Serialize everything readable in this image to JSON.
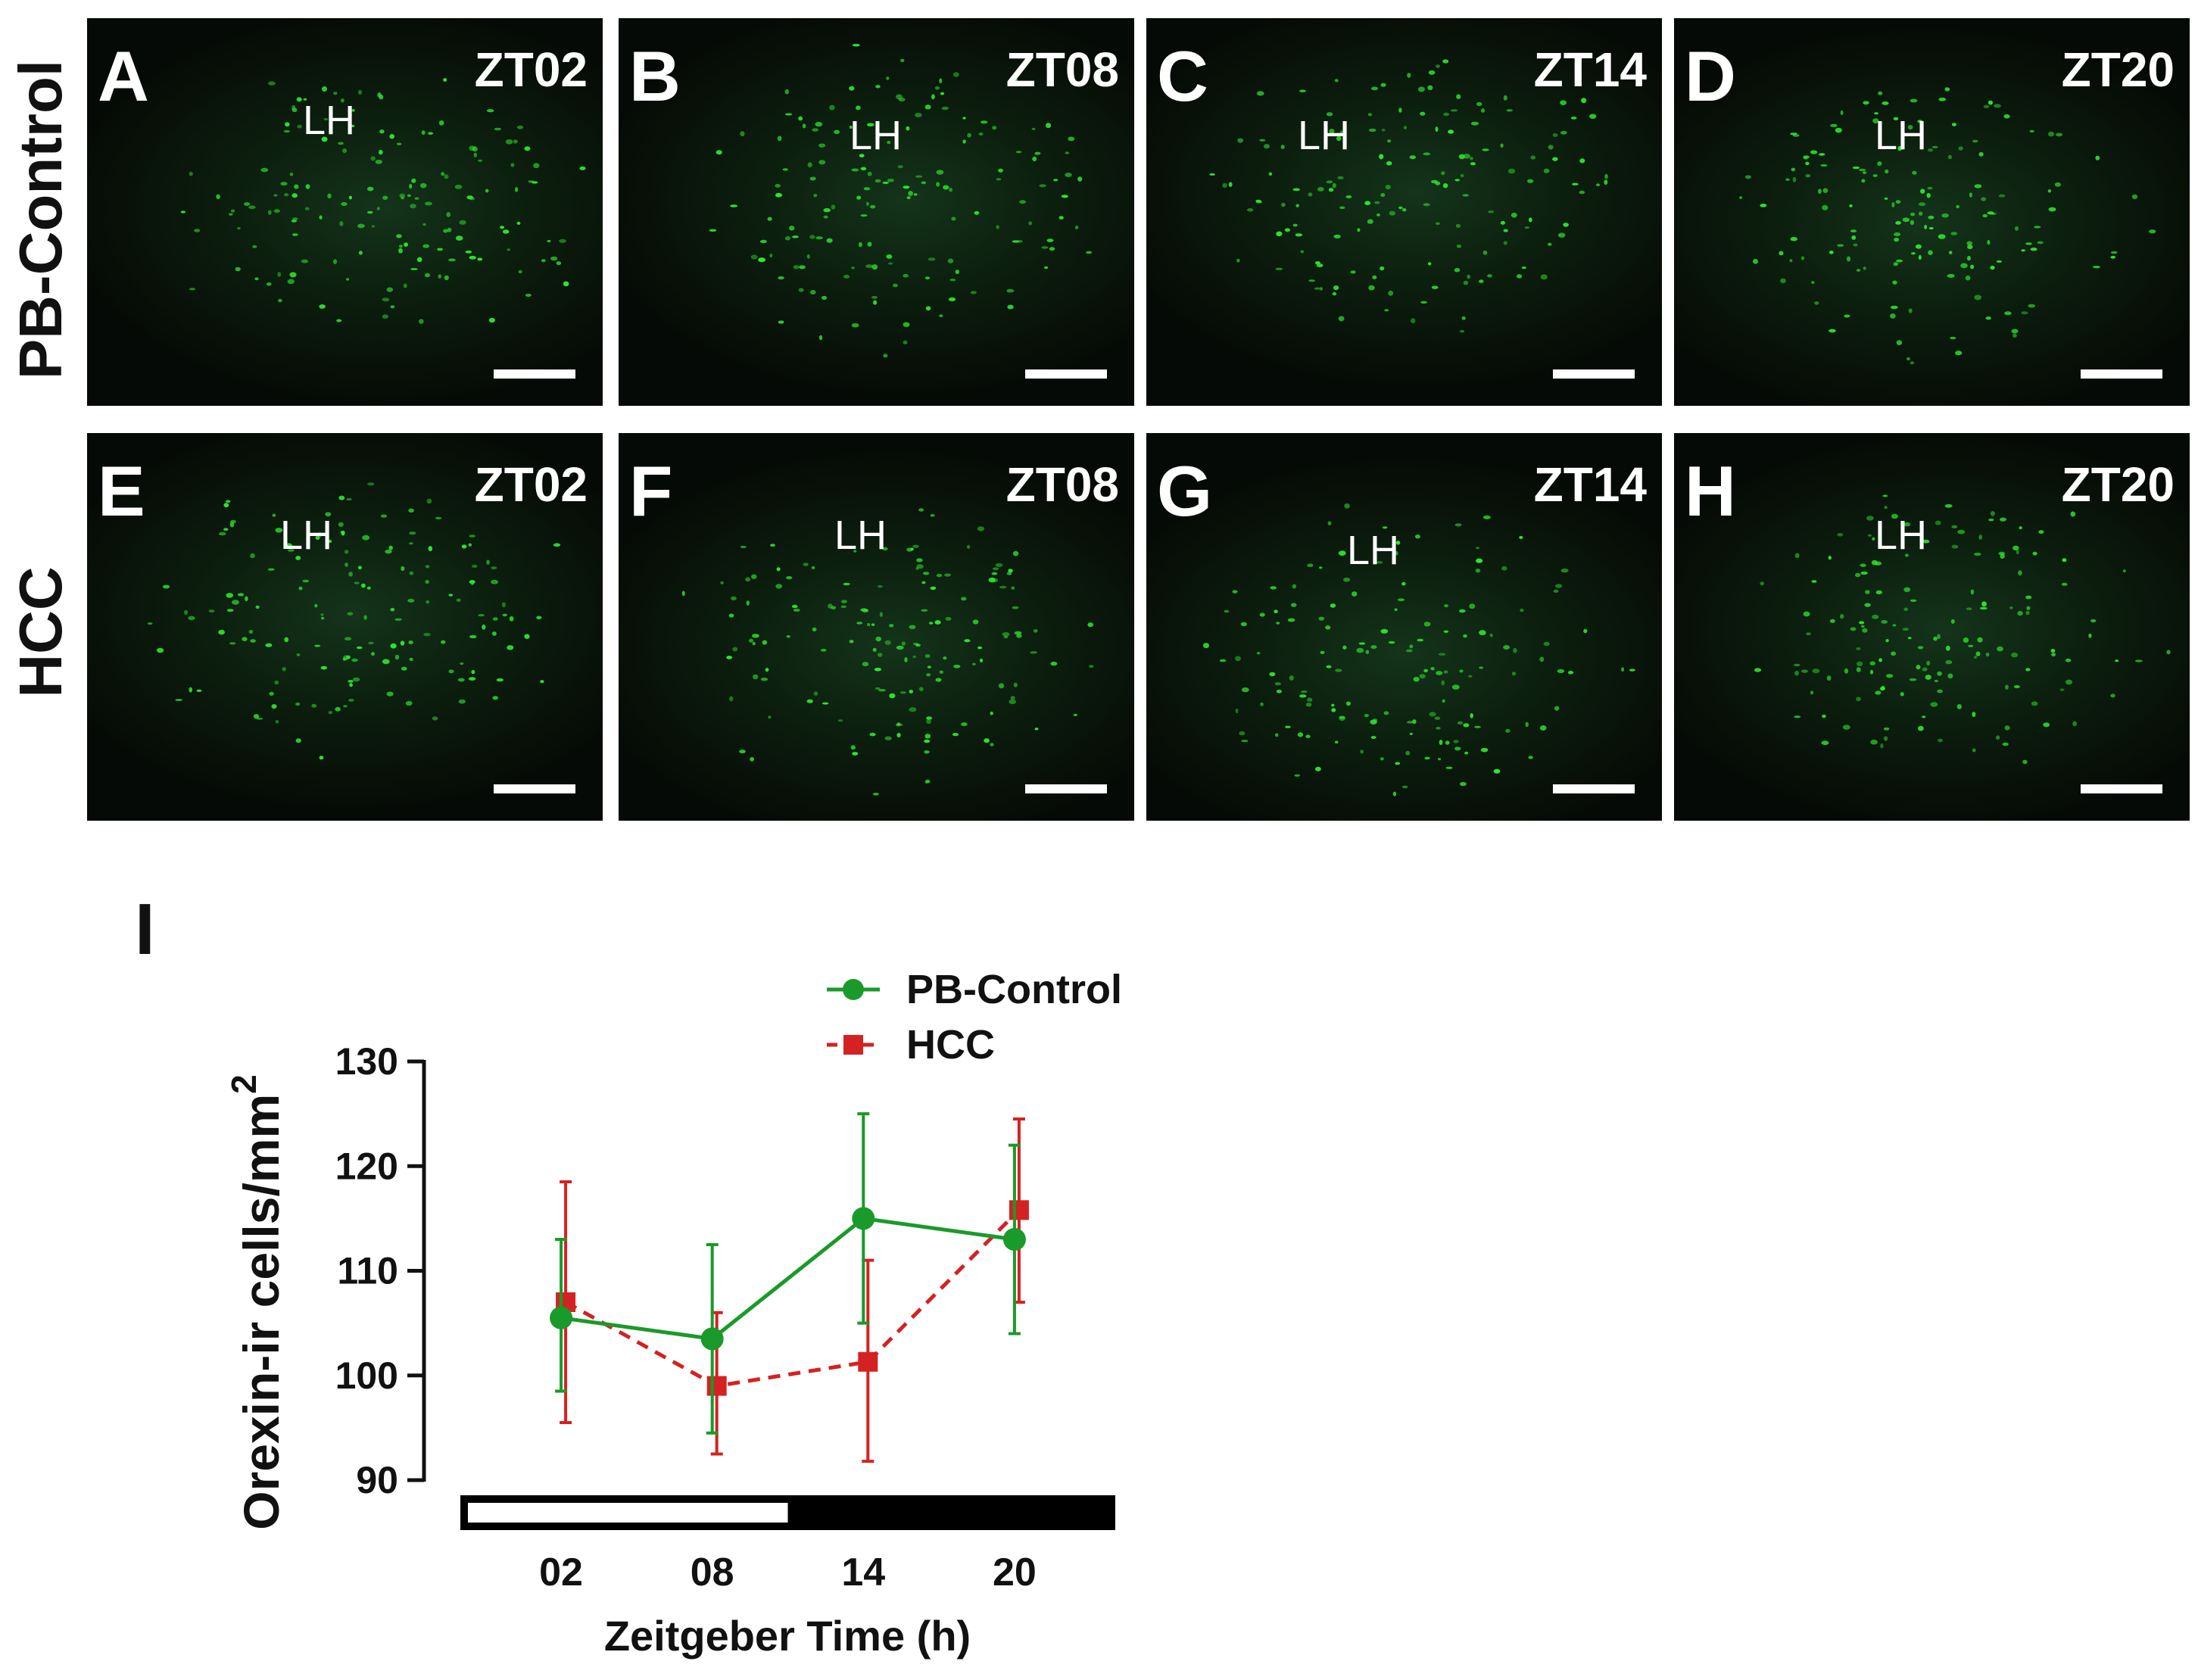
{
  "row_labels": {
    "top": "PB-Control",
    "bottom": "HCC"
  },
  "micrographs": [
    {
      "letter": "A",
      "zt": "ZT02",
      "region": "LH"
    },
    {
      "letter": "B",
      "zt": "ZT08",
      "region": "LH"
    },
    {
      "letter": "C",
      "zt": "ZT14",
      "region": "LH"
    },
    {
      "letter": "D",
      "zt": "ZT20",
      "region": "LH"
    },
    {
      "letter": "E",
      "zt": "ZT02",
      "region": "LH"
    },
    {
      "letter": "F",
      "zt": "ZT08",
      "region": "LH"
    },
    {
      "letter": "G",
      "zt": "ZT14",
      "region": "LH"
    },
    {
      "letter": "H",
      "zt": "ZT20",
      "region": "LH"
    }
  ],
  "colors": {
    "pb_control": "#1a9a2a",
    "hcc": "#d42222",
    "fluorescence": "#2fe62f"
  },
  "chart_data": {
    "panel_label": "I",
    "type": "line",
    "x": [
      "02",
      "08",
      "14",
      "20"
    ],
    "xlabel": "Zeitgeber Time (h)",
    "ylabel_main": "Orexin-ir cells/mm",
    "ylabel_sup": "2",
    "ylim": [
      90,
      130
    ],
    "yticks": [
      90,
      100,
      110,
      120,
      130
    ],
    "light_dark_bar": {
      "light_until_zt": 11,
      "x_range_zt": [
        -2,
        24
      ]
    },
    "series": [
      {
        "name": "PB-Control",
        "values": [
          105.5,
          103.5,
          115,
          113
        ],
        "err_low": [
          98.5,
          94.5,
          105,
          104
        ],
        "err_high": [
          113,
          112.5,
          125,
          122
        ],
        "marker": "circle",
        "dashed": false
      },
      {
        "name": "HCC",
        "values": [
          107,
          99,
          101.3,
          115.8
        ],
        "err_low": [
          95.5,
          92.5,
          91.8,
          107
        ],
        "err_high": [
          118.5,
          106,
          111,
          124.5
        ],
        "marker": "square",
        "dashed": true
      }
    ],
    "legend_position": "top"
  }
}
